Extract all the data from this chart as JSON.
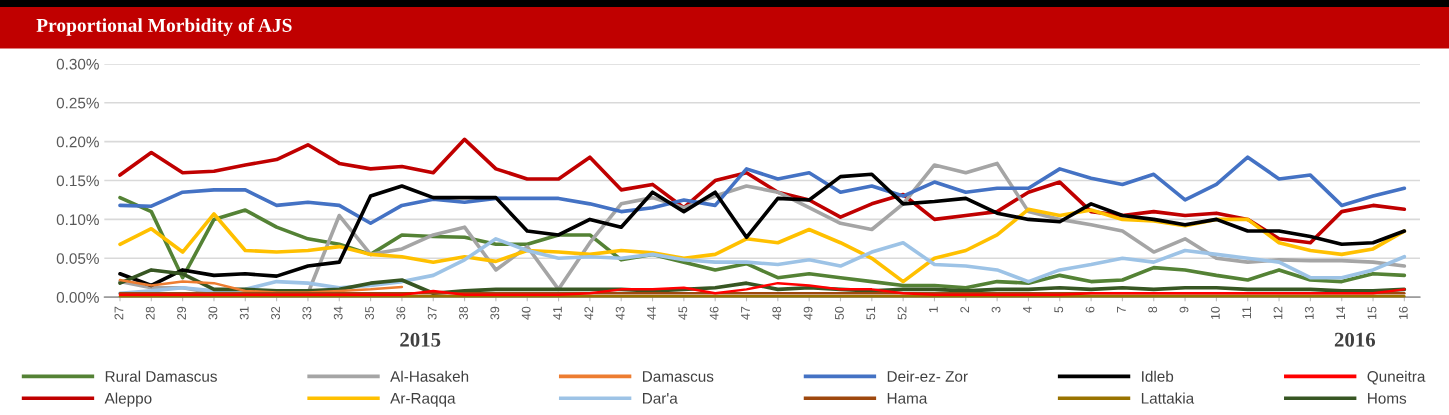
{
  "chart_data": {
    "type": "line",
    "title": "Proportional Morbidity of AJS",
    "categories": [
      "27",
      "28",
      "29",
      "30",
      "31",
      "32",
      "33",
      "34",
      "35",
      "36",
      "37",
      "38",
      "39",
      "40",
      "41",
      "42",
      "43",
      "44",
      "45",
      "46",
      "47",
      "48",
      "49",
      "50",
      "51",
      "52",
      "1",
      "2",
      "3",
      "4",
      "5",
      "6",
      "7",
      "8",
      "9",
      "10",
      "11",
      "12",
      "13",
      "14",
      "15",
      "16"
    ],
    "ylim": [
      0,
      0.3
    ],
    "yticks": [
      {
        "value": 0,
        "label": "0.00%"
      },
      {
        "value": 0.05,
        "label": "0.05%"
      },
      {
        "value": 0.1,
        "label": "0.10%"
      },
      {
        "value": 0.15,
        "label": "0.15%"
      },
      {
        "value": 0.2,
        "label": "0.20%"
      },
      {
        "value": 0.25,
        "label": "0.25%"
      },
      {
        "value": 0.3,
        "label": "0.30%"
      }
    ],
    "grid": "y",
    "legend": "bottom",
    "marker": "none",
    "line_style": "solid",
    "annotations": [
      "2015",
      "2016"
    ],
    "series": [
      {
        "name": "Rural Damascus",
        "color": "#548235",
        "values": [
          0.128,
          0.11,
          0.025,
          0.1,
          0.112,
          0.09,
          0.075,
          0.068,
          0.055,
          0.08,
          0.078,
          0.077,
          0.068,
          0.068,
          0.08,
          0.08,
          0.048,
          0.055,
          0.045,
          0.035,
          0.043,
          0.025,
          0.03,
          0.025,
          0.02,
          0.015,
          0.015,
          0.012,
          0.02,
          0.018,
          0.028,
          0.02,
          0.022,
          0.038,
          0.035,
          0.028,
          0.022,
          0.035,
          0.022,
          0.02,
          0.03,
          0.028
        ]
      },
      {
        "name": "Aleppo",
        "color": "#c00000",
        "values": [
          0.157,
          0.186,
          0.16,
          0.162,
          0.17,
          0.177,
          0.196,
          0.172,
          0.165,
          0.168,
          0.16,
          0.203,
          0.165,
          0.152,
          0.152,
          0.18,
          0.138,
          0.145,
          0.115,
          0.15,
          0.16,
          0.135,
          0.125,
          0.103,
          0.12,
          0.132,
          0.1,
          0.105,
          0.11,
          0.135,
          0.148,
          0.11,
          0.105,
          0.11,
          0.105,
          0.108,
          0.1,
          0.075,
          0.07,
          0.11,
          0.118,
          0.113
        ]
      },
      {
        "name": "Al-Hasakeh",
        "color": "#a5a5a5",
        "values": [
          0.02,
          0.012,
          0.012,
          0.005,
          0.005,
          0.005,
          0.005,
          0.105,
          0.055,
          0.062,
          0.08,
          0.09,
          0.035,
          0.065,
          0.01,
          0.07,
          0.12,
          0.128,
          0.115,
          0.13,
          0.143,
          0.135,
          0.115,
          0.095,
          0.087,
          0.12,
          0.17,
          0.16,
          0.172,
          0.11,
          0.1,
          0.093,
          0.085,
          0.058,
          0.075,
          0.05,
          0.045,
          0.048,
          0.047,
          0.047,
          0.045,
          0.04
        ]
      },
      {
        "name": "Ar-Raqqa",
        "color": "#ffc000",
        "values": [
          0.068,
          0.088,
          0.058,
          0.107,
          0.06,
          0.058,
          0.06,
          0.065,
          0.055,
          0.052,
          0.045,
          0.052,
          0.046,
          0.06,
          0.058,
          0.055,
          0.06,
          0.057,
          0.05,
          0.055,
          0.075,
          0.07,
          0.087,
          0.07,
          0.05,
          0.02,
          0.05,
          0.06,
          0.08,
          0.113,
          0.105,
          0.112,
          0.1,
          0.098,
          0.092,
          0.1,
          0.1,
          0.07,
          0.06,
          0.055,
          0.062,
          0.085
        ]
      },
      {
        "name": "Damascus",
        "color": "#ed7d31",
        "values": [
          0.022,
          0.015,
          0.02,
          0.018,
          0.008,
          0.006,
          0.006,
          0.008,
          0.01,
          0.013,
          null,
          null,
          null,
          null,
          null,
          null,
          null,
          null,
          null,
          null,
          null,
          null,
          null,
          null,
          null,
          null,
          null,
          null,
          null,
          null,
          null,
          null,
          null,
          null,
          null,
          null,
          null,
          null,
          null,
          null,
          null,
          null
        ]
      },
      {
        "name": "Dar'a",
        "color": "#9dc3e6",
        "values": [
          0.005,
          0.008,
          0.012,
          0.008,
          0.01,
          0.02,
          0.018,
          0.012,
          0.015,
          0.02,
          0.028,
          0.048,
          0.075,
          0.06,
          0.05,
          0.052,
          0.05,
          0.055,
          0.048,
          0.045,
          0.045,
          0.042,
          0.048,
          0.04,
          0.058,
          0.07,
          0.042,
          0.04,
          0.035,
          0.02,
          0.035,
          0.042,
          0.05,
          0.045,
          0.06,
          0.055,
          0.05,
          0.045,
          0.025,
          0.025,
          0.035,
          0.052
        ]
      },
      {
        "name": "Deir-ez- Zor",
        "color": "#4472c4",
        "values": [
          0.118,
          0.117,
          0.135,
          0.138,
          0.138,
          0.118,
          0.122,
          0.118,
          0.095,
          0.118,
          0.126,
          0.122,
          0.127,
          0.127,
          0.127,
          0.12,
          0.11,
          0.115,
          0.125,
          0.118,
          0.165,
          0.152,
          0.16,
          0.135,
          0.143,
          0.13,
          0.148,
          0.135,
          0.14,
          0.14,
          0.165,
          0.153,
          0.145,
          0.158,
          0.125,
          0.145,
          0.18,
          0.152,
          0.157,
          0.118,
          0.13,
          0.14
        ]
      },
      {
        "name": "Hama",
        "color": "#9e480e",
        "values": [
          0.005,
          0.005,
          0.005,
          0.005,
          0.005,
          0.005,
          0.005,
          0.005,
          0.005,
          0.005,
          0.005,
          0.005,
          0.005,
          0.005,
          0.005,
          0.005,
          0.005,
          0.005,
          0.005,
          0.005,
          0.005,
          0.005,
          0.005,
          0.005,
          0.005,
          0.005,
          0.005,
          0.005,
          0.005,
          0.005,
          0.005,
          0.005,
          0.005,
          0.005,
          0.005,
          0.005,
          0.005,
          0.005,
          0.005,
          0.005,
          0.005,
          0.005
        ]
      },
      {
        "name": "Idleb",
        "color": "#000000",
        "values": [
          0.03,
          0.015,
          0.035,
          0.028,
          0.03,
          0.027,
          0.04,
          0.045,
          0.13,
          0.143,
          0.128,
          0.128,
          0.128,
          0.085,
          0.08,
          0.1,
          0.09,
          0.135,
          0.11,
          0.135,
          0.077,
          0.127,
          0.125,
          0.155,
          0.158,
          0.12,
          0.123,
          0.127,
          0.108,
          0.1,
          0.097,
          0.12,
          0.105,
          0.1,
          0.093,
          0.1,
          0.085,
          0.085,
          0.078,
          0.068,
          0.07,
          0.085
        ]
      },
      {
        "name": "Lattakia",
        "color": "#997300",
        "values": [
          0.001,
          0.001,
          0.001,
          0.001,
          0.001,
          0.001,
          0.001,
          0.001,
          0.001,
          0.001,
          0.001,
          0.001,
          0.001,
          0.001,
          0.001,
          0.001,
          0.001,
          0.001,
          0.001,
          0.001,
          0.001,
          0.001,
          0.001,
          0.001,
          0.001,
          0.001,
          0.001,
          0.001,
          0.001,
          0.001,
          0.001,
          0.001,
          0.001,
          0.001,
          0.001,
          0.001,
          0.001,
          0.001,
          0.001,
          0.001,
          0.001,
          0.001
        ]
      },
      {
        "name": "Quneitra",
        "color": "#ff0000",
        "values": [
          0.003,
          0.003,
          0.003,
          0.003,
          0.003,
          0.003,
          0.003,
          0.003,
          0.003,
          0.003,
          0.008,
          0.003,
          0.003,
          0.003,
          0.003,
          0.005,
          0.01,
          0.01,
          0.012,
          0.005,
          0.01,
          0.018,
          0.015,
          0.01,
          0.01,
          0.005,
          0.003,
          0.003,
          0.003,
          0.003,
          0.003,
          0.005,
          0.005,
          0.005,
          0.005,
          0.005,
          0.005,
          0.005,
          0.005,
          0.005,
          0.005,
          0.01
        ]
      },
      {
        "name": "Homs",
        "color": "#375623",
        "values": [
          0.018,
          0.035,
          0.03,
          0.01,
          0.01,
          0.008,
          0.008,
          0.01,
          0.018,
          0.022,
          0.005,
          0.008,
          0.01,
          0.01,
          0.01,
          0.01,
          0.01,
          0.008,
          0.01,
          0.012,
          0.018,
          0.01,
          0.012,
          0.01,
          0.008,
          0.01,
          0.01,
          0.008,
          0.01,
          0.01,
          0.012,
          0.01,
          0.012,
          0.01,
          0.012,
          0.012,
          0.01,
          0.01,
          0.01,
          0.008,
          0.008,
          0.01
        ]
      }
    ]
  }
}
